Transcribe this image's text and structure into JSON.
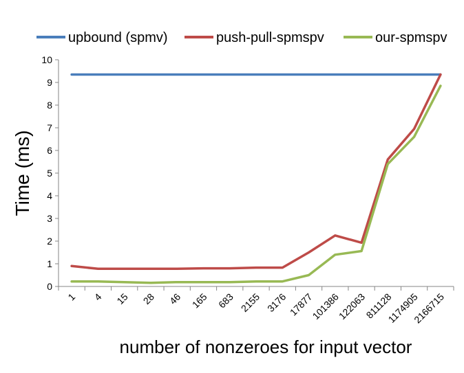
{
  "chart_data": {
    "type": "line",
    "title": "",
    "xlabel": "number of nonzeroes for input vector",
    "ylabel": "Time (ms)",
    "categories": [
      "1",
      "4",
      "15",
      "28",
      "46",
      "165",
      "683",
      "2155",
      "3176",
      "17877",
      "101386",
      "122063",
      "811128",
      "1174905",
      "2166715"
    ],
    "ylim": [
      0,
      10
    ],
    "yticks": [
      "0",
      "1",
      "2",
      "3",
      "4",
      "5",
      "6",
      "7",
      "8",
      "9",
      "10"
    ],
    "grid": false,
    "legend_position": "top",
    "series": [
      {
        "name": "upbound (spmv)",
        "color": "#4a7ebb",
        "values": [
          9.35,
          9.35,
          9.35,
          9.35,
          9.35,
          9.35,
          9.35,
          9.35,
          9.35,
          9.35,
          9.35,
          9.35,
          9.35,
          9.35,
          9.35
        ]
      },
      {
        "name": "push-pull-spmspv",
        "color": "#be4b48",
        "values": [
          0.9,
          0.78,
          0.78,
          0.78,
          0.78,
          0.8,
          0.8,
          0.83,
          0.83,
          1.5,
          2.25,
          1.93,
          5.6,
          6.95,
          9.35
        ]
      },
      {
        "name": "our-spmspv",
        "color": "#98b954",
        "values": [
          0.22,
          0.22,
          0.19,
          0.16,
          0.19,
          0.19,
          0.19,
          0.22,
          0.22,
          0.5,
          1.4,
          1.56,
          5.4,
          6.6,
          8.85
        ]
      }
    ]
  }
}
